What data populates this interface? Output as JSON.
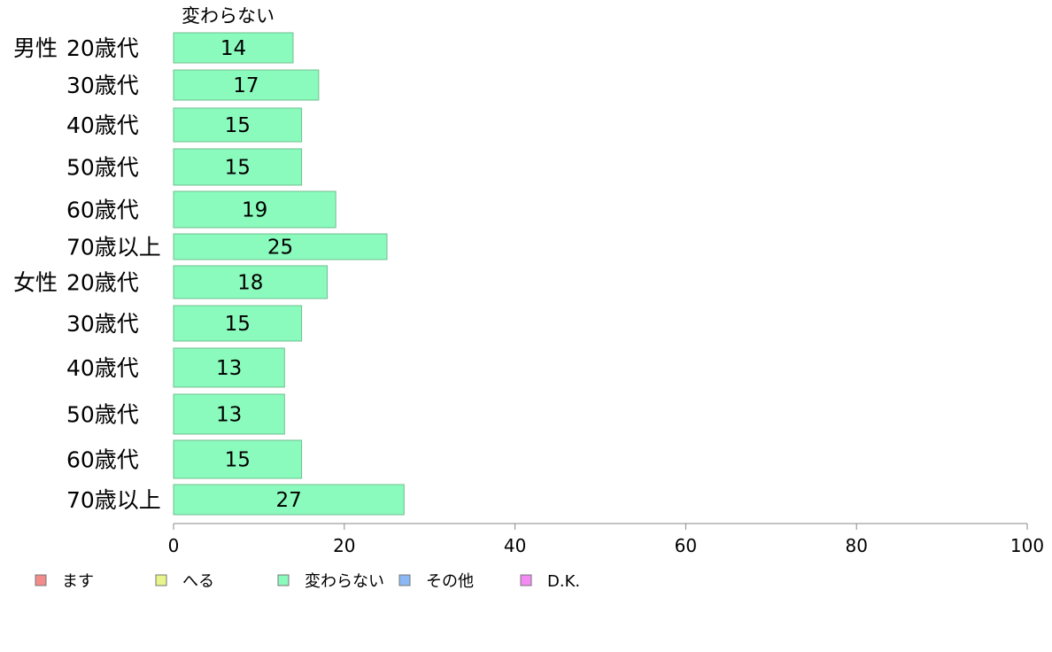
{
  "chart_data": {
    "type": "bar",
    "orientation": "horizontal",
    "stacked": true,
    "column_header": "変わらない",
    "groups": [
      {
        "label": "男性",
        "categories": [
          "20歳代",
          "30歳代",
          "40歳代",
          "50歳代",
          "60歳代",
          "70歳以上"
        ]
      },
      {
        "label": "女性",
        "categories": [
          "20歳代",
          "30歳代",
          "40歳代",
          "50歳代",
          "60歳代",
          "70歳以上"
        ]
      }
    ],
    "series": [
      {
        "name": "ます",
        "color": "#f28b8b",
        "values": [
          null,
          null,
          null,
          null,
          null,
          null,
          null,
          null,
          null,
          null,
          null,
          null
        ]
      },
      {
        "name": "へる",
        "color": "#e8f58b",
        "values": [
          null,
          null,
          null,
          null,
          null,
          null,
          null,
          null,
          null,
          null,
          null,
          null
        ]
      },
      {
        "name": "変わらない",
        "color": "#8bfabd",
        "values": [
          14,
          17,
          15,
          15,
          19,
          25,
          18,
          15,
          13,
          13,
          15,
          27
        ]
      },
      {
        "name": "その他",
        "color": "#8bb8f5",
        "values": [
          null,
          null,
          null,
          null,
          null,
          null,
          null,
          null,
          null,
          null,
          null,
          null
        ]
      },
      {
        "name": "D.K.",
        "color": "#f28bf2",
        "values": [
          null,
          null,
          null,
          null,
          null,
          null,
          null,
          null,
          null,
          null,
          null,
          null
        ]
      }
    ],
    "data_labels": [
      "14",
      "17",
      "15",
      "15",
      "19",
      "25",
      "18",
      "15",
      "13",
      "13",
      "15",
      "27"
    ],
    "xlim": [
      0,
      100
    ],
    "xticks": [
      "0",
      "20",
      "40",
      "60",
      "80",
      "100"
    ],
    "grid": false,
    "legend_position": "bottom"
  }
}
